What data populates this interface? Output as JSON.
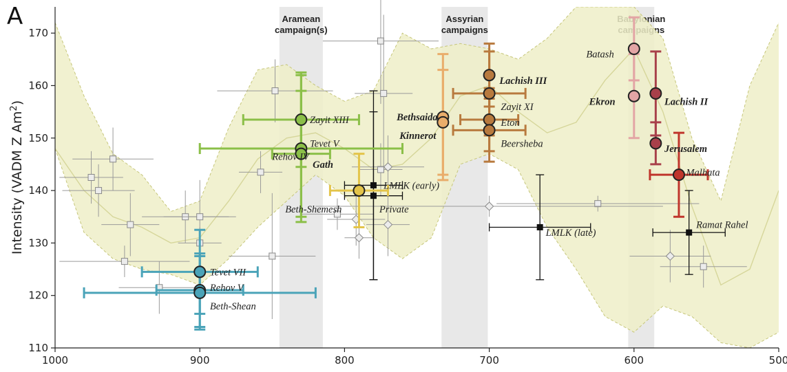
{
  "panel_label": "A",
  "chart_data": {
    "type": "scatter",
    "x_axis": {
      "direction": "reversed",
      "range": [
        1000,
        500
      ],
      "ticks": [
        1000,
        900,
        800,
        700,
        600,
        500
      ]
    },
    "y_axis": {
      "label_prefix": "Intensity (VADM Z Am",
      "label_sup": "2",
      "label_suffix": ")",
      "range": [
        110,
        175
      ],
      "ticks": [
        110,
        120,
        130,
        140,
        150,
        160,
        170
      ]
    },
    "periods": [
      {
        "lines": [
          "Aramean",
          "campaign(s)"
        ],
        "x": [
          845,
          815
        ]
      },
      {
        "lines": [
          "Assyrian",
          "campaigns"
        ],
        "x": [
          733,
          701
        ]
      },
      {
        "lines": [
          "Babylonian",
          "campaigns"
        ],
        "x": [
          604,
          586
        ]
      }
    ],
    "envelope": {
      "x": [
        1000,
        980,
        960,
        940,
        920,
        900,
        880,
        860,
        840,
        820,
        800,
        780,
        760,
        740,
        720,
        700,
        680,
        660,
        640,
        620,
        600,
        580,
        560,
        540,
        520,
        500
      ],
      "upper": [
        172,
        158,
        147,
        143,
        136,
        138,
        152,
        163,
        164,
        160,
        157,
        159,
        170,
        167,
        168,
        167,
        165,
        169,
        175,
        175,
        175,
        169,
        150,
        138,
        160,
        172
      ],
      "lower": [
        148,
        132,
        127,
        125,
        124,
        122,
        127,
        133,
        138,
        143,
        139,
        131,
        127,
        131,
        145,
        147,
        144,
        133,
        125,
        116,
        113,
        118,
        116,
        111,
        110,
        113
      ]
    },
    "curve": {
      "x": [
        1000,
        980,
        960,
        940,
        920,
        900,
        880,
        860,
        840,
        820,
        800,
        780,
        760,
        740,
        720,
        700,
        680,
        660,
        640,
        620,
        600,
        580,
        560,
        540,
        520,
        500
      ],
      "y": [
        148,
        140,
        135,
        133,
        130,
        131,
        138,
        146,
        150,
        151,
        148,
        144,
        145,
        150,
        158,
        160,
        155,
        151,
        153,
        161,
        167,
        155,
        137,
        122,
        125,
        140
      ]
    },
    "gray_points": [
      {
        "x": 975,
        "y": 142.5,
        "xe": 22,
        "ye": 5,
        "m": "s"
      },
      {
        "x": 960,
        "y": 146,
        "xe": 28,
        "ye": 6,
        "m": "s"
      },
      {
        "x": 970,
        "y": 140,
        "xe": 25,
        "ye": 5,
        "m": "s"
      },
      {
        "x": 948,
        "y": 133.5,
        "xe": 20,
        "ye": 6,
        "m": "s"
      },
      {
        "x": 952,
        "y": 126.5,
        "xe": 45,
        "ye": 3,
        "m": "s"
      },
      {
        "x": 928,
        "y": 121.5,
        "xe": 28,
        "ye": 5,
        "m": "s"
      },
      {
        "x": 910,
        "y": 135,
        "xe": 30,
        "ye": 5,
        "m": "s"
      },
      {
        "x": 900,
        "y": 135,
        "xe": 25,
        "ye": 7,
        "m": "s"
      },
      {
        "x": 900,
        "y": 130,
        "xe": 15,
        "ye": 3,
        "m": "s"
      },
      {
        "x": 850,
        "y": 127.5,
        "xe": 30,
        "ye": 12,
        "m": "s"
      },
      {
        "x": 848,
        "y": 159,
        "xe": 40,
        "ye": 6,
        "m": "s"
      },
      {
        "x": 858,
        "y": 143.5,
        "xe": 15,
        "ye": 4,
        "m": "s"
      },
      {
        "x": 805,
        "y": 135.5,
        "xe": 25,
        "ye": 3,
        "m": "s"
      },
      {
        "x": 775,
        "y": 168.5,
        "xe": 40,
        "ye": 12,
        "m": "s"
      },
      {
        "x": 773,
        "y": 158.5,
        "xe": 20,
        "ye": 15,
        "m": "s"
      },
      {
        "x": 775,
        "y": 144,
        "xe": 15,
        "ye": 5,
        "m": "s"
      },
      {
        "x": 625,
        "y": 137.5,
        "xe": 70,
        "ye": 1.5,
        "m": "s"
      },
      {
        "x": 552,
        "y": 125.5,
        "xe": 30,
        "ye": 4,
        "m": "s"
      },
      {
        "x": 770,
        "y": 144.5,
        "xe": 25,
        "ye": 6,
        "m": "d"
      },
      {
        "x": 792,
        "y": 134.5,
        "xe": 20,
        "ye": 5,
        "m": "d"
      },
      {
        "x": 770,
        "y": 133.5,
        "xe": 15,
        "ye": 6,
        "m": "d"
      },
      {
        "x": 790,
        "y": 131,
        "xe": 10,
        "ye": 4,
        "m": "d"
      },
      {
        "x": 700,
        "y": 137,
        "xe": 120,
        "ye": 2,
        "m": "d"
      },
      {
        "x": 575,
        "y": 127.5,
        "xe": 28,
        "ye": 5,
        "m": "d"
      }
    ],
    "black_points": [
      {
        "x": 780,
        "y": 141,
        "xe": 20,
        "ye": 18
      },
      {
        "x": 780,
        "y": 139,
        "xe": 20,
        "ye": 16
      },
      {
        "x": 665,
        "y": 133,
        "xe": 35,
        "ye": 10
      },
      {
        "x": 562,
        "y": 132,
        "xe": 25,
        "ye": 8
      }
    ],
    "series": [
      {
        "color": "#8bbf48",
        "points": [
          {
            "x": 830,
            "y": 153.5,
            "xe": 40,
            "ye": 9
          },
          {
            "x": 830,
            "y": 148,
            "xe": 70,
            "ye": 14
          },
          {
            "x": 830,
            "y": 147,
            "xe": 20,
            "ye": 12
          }
        ]
      },
      {
        "color": "#4aa3b8",
        "points": [
          {
            "x": 900,
            "y": 124.5,
            "xe": 40,
            "ye": 8
          },
          {
            "x": 900,
            "y": 121,
            "xe": 30,
            "ye": 7
          },
          {
            "x": 900,
            "y": 120.5,
            "xe": 80,
            "ye": 7
          }
        ]
      },
      {
        "color": "#e3c44a",
        "points": [
          {
            "x": 790,
            "y": 140,
            "xe": 20,
            "ye": 7
          }
        ]
      },
      {
        "color": "#e9ad6b",
        "points": [
          {
            "x": 732,
            "y": 154,
            "xe": 0,
            "ye": 12
          },
          {
            "x": 732,
            "y": 153,
            "xe": 0,
            "ye": 10
          }
        ]
      },
      {
        "color": "#b87a3e",
        "points": [
          {
            "x": 700,
            "y": 162,
            "xe": 0,
            "ye": 6
          },
          {
            "x": 700,
            "y": 158.5,
            "xe": 25,
            "ye": 8
          },
          {
            "x": 700,
            "y": 153.5,
            "xe": 20,
            "ye": 6
          },
          {
            "x": 700,
            "y": 151.5,
            "xe": 25,
            "ye": 6
          }
        ]
      },
      {
        "color": "#e3a5a5",
        "points": [
          {
            "x": 600,
            "y": 167,
            "xe": 0,
            "ye": 6
          },
          {
            "x": 600,
            "y": 158,
            "xe": 0,
            "ye": 8
          }
        ]
      },
      {
        "color": "#a8404a",
        "points": [
          {
            "x": 585,
            "y": 158.5,
            "xe": 0,
            "ye": 8
          },
          {
            "x": 585,
            "y": 149,
            "xe": 0,
            "ye": 4
          }
        ]
      },
      {
        "color": "#c0362c",
        "points": [
          {
            "x": 569,
            "y": 143,
            "xe": 20,
            "ye": 8
          }
        ]
      }
    ],
    "labels": [
      {
        "text": "Zayit XIII",
        "x": 824,
        "y": 153.5,
        "bold": false
      },
      {
        "text": "Tevet V",
        "x": 824,
        "y": 149,
        "bold": false
      },
      {
        "text": "Rehov IV",
        "x": 850,
        "y": 146.5,
        "bold": false
      },
      {
        "text": "Gath",
        "x": 822,
        "y": 145,
        "bold": true
      },
      {
        "text": "Tevet VII",
        "x": 893,
        "y": 124.5,
        "bold": false
      },
      {
        "text": "Rehov V",
        "x": 893,
        "y": 121.5,
        "bold": false
      },
      {
        "text": "Beth-Shean",
        "x": 893,
        "y": 118,
        "bold": false
      },
      {
        "text": "Beth-Shemesh",
        "x": 841,
        "y": 136.5,
        "bold": false
      },
      {
        "text": "LMLK (early)",
        "x": 773,
        "y": 141,
        "bold": false
      },
      {
        "text": "Private",
        "x": 776,
        "y": 136.5,
        "bold": false
      },
      {
        "text": "Bethsaida",
        "x": 764,
        "y": 154,
        "bold": true
      },
      {
        "text": "Kinnerot",
        "x": 762,
        "y": 150.5,
        "bold": true
      },
      {
        "text": "Lachish III",
        "x": 693,
        "y": 161,
        "bold": true
      },
      {
        "text": "Zayit XI",
        "x": 692,
        "y": 156,
        "bold": false
      },
      {
        "text": "Eton",
        "x": 692,
        "y": 153,
        "bold": false
      },
      {
        "text": "Beersheba",
        "x": 692,
        "y": 149,
        "bold": false
      },
      {
        "text": "LMLK (late)",
        "x": 661,
        "y": 132,
        "bold": false
      },
      {
        "text": "Batash",
        "x": 633,
        "y": 166,
        "bold": false
      },
      {
        "text": "Ekron",
        "x": 631,
        "y": 157,
        "bold": true
      },
      {
        "text": "Lachish II",
        "x": 579,
        "y": 157,
        "bold": true
      },
      {
        "text": "Jerusalem",
        "x": 579,
        "y": 148,
        "bold": true
      },
      {
        "text": "Malhata",
        "x": 564,
        "y": 143.5,
        "bold": false
      },
      {
        "text": "Ramat Rahel",
        "x": 557,
        "y": 133.5,
        "bold": false
      }
    ]
  }
}
